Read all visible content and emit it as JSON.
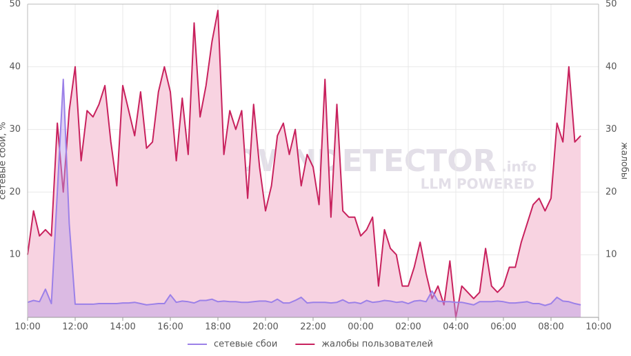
{
  "chart_data": {
    "type": "area",
    "y_label": "сетевые сбои, %",
    "y2_label": "жалобы",
    "watermark": [
      "DOWNDETECTOR",
      ".info",
      "LLM POWERED"
    ],
    "x": [
      0,
      0.25,
      0.5,
      0.75,
      1,
      1.25,
      1.5,
      1.75,
      2,
      2.25,
      2.5,
      2.75,
      3,
      3.25,
      3.5,
      3.75,
      4,
      4.25,
      4.5,
      4.75,
      5,
      5.25,
      5.5,
      5.75,
      6,
      6.25,
      6.5,
      6.75,
      7,
      7.25,
      7.5,
      7.75,
      8,
      8.25,
      8.5,
      8.75,
      9,
      9.25,
      9.5,
      9.75,
      10,
      10.25,
      10.5,
      10.75,
      11,
      11.25,
      11.5,
      11.75,
      12,
      12.25,
      12.5,
      12.75,
      13,
      13.25,
      13.5,
      13.75,
      14,
      14.25,
      14.5,
      14.75,
      15,
      15.25,
      15.5,
      15.75,
      16,
      16.25,
      16.5,
      16.75,
      17,
      17.25,
      17.5,
      17.75,
      18,
      18.25,
      18.5,
      18.75,
      19,
      19.25,
      19.5,
      19.75,
      20,
      20.25,
      20.5,
      20.75,
      21,
      21.25,
      21.5,
      21.75,
      22,
      22.25,
      22.5,
      22.75,
      23,
      23.25
    ],
    "series": [
      {
        "name": "жалобы пользователей",
        "color": "#c8215d",
        "fill": "#f8d3e1",
        "axis": "y2",
        "values": [
          10,
          17,
          13,
          14,
          13,
          31,
          20,
          33,
          40,
          25,
          33,
          32,
          34,
          37,
          28,
          21,
          37,
          33,
          29,
          36,
          27,
          28,
          36,
          40,
          36,
          25,
          35,
          26,
          47,
          32,
          37,
          44,
          49,
          26,
          33,
          30,
          33,
          19,
          34,
          24,
          17,
          21,
          29,
          31,
          26,
          30,
          21,
          26,
          24,
          18,
          38,
          16,
          34,
          17,
          16,
          16,
          13,
          14,
          16,
          5,
          14,
          11,
          10,
          5,
          5,
          8,
          12,
          7,
          3,
          5,
          2,
          9,
          0,
          5,
          4,
          3,
          4,
          11,
          5,
          4,
          5,
          8,
          8,
          12,
          15,
          18,
          19,
          17,
          19,
          31,
          28,
          40,
          28,
          29
        ]
      },
      {
        "name": "сетевые сбои",
        "color": "#9b80e8",
        "fill": "rgba(185,155,230,0.45)",
        "values": [
          2.4,
          2.7,
          2.5,
          4.5,
          2.2,
          20,
          38,
          15,
          2.1,
          2.1,
          2.1,
          2.1,
          2.2,
          2.2,
          2.2,
          2.2,
          2.3,
          2.3,
          2.4,
          2.2,
          2.0,
          2.1,
          2.2,
          2.2,
          3.6,
          2.4,
          2.6,
          2.5,
          2.3,
          2.7,
          2.7,
          2.9,
          2.5,
          2.6,
          2.5,
          2.5,
          2.4,
          2.4,
          2.5,
          2.6,
          2.6,
          2.4,
          2.9,
          2.3,
          2.3,
          2.7,
          3.2,
          2.3,
          2.4,
          2.4,
          2.4,
          2.3,
          2.4,
          2.8,
          2.3,
          2.4,
          2.2,
          2.7,
          2.4,
          2.5,
          2.7,
          2.6,
          2.4,
          2.5,
          2.2,
          2.6,
          2.7,
          2.5,
          4.2,
          2.6,
          2.5,
          2.5,
          2.4,
          2.4,
          2.2,
          2.0,
          2.5,
          2.5,
          2.5,
          2.6,
          2.5,
          2.3,
          2.3,
          2.4,
          2.5,
          2.2,
          2.2,
          1.9,
          2.2,
          3.2,
          2.6,
          2.5,
          2.2,
          2.0
        ]
      }
    ],
    "legend_order": [
      1,
      0
    ],
    "xlim": [
      0,
      24
    ],
    "xticks": [
      {
        "value": 0,
        "label": "10:00"
      },
      {
        "value": 2,
        "label": "12:00"
      },
      {
        "value": 4,
        "label": "14:00"
      },
      {
        "value": 6,
        "label": "16:00"
      },
      {
        "value": 8,
        "label": "18:00"
      },
      {
        "value": 10,
        "label": "20:00"
      },
      {
        "value": 12,
        "label": "22:00"
      },
      {
        "value": 14,
        "label": "00:00"
      },
      {
        "value": 16,
        "label": "02:00"
      },
      {
        "value": 18,
        "label": "04:00"
      },
      {
        "value": 20,
        "label": "06:00"
      },
      {
        "value": 22,
        "label": "08:00"
      },
      {
        "value": 24,
        "label": "10:00"
      }
    ],
    "ylim": [
      0,
      50
    ],
    "yticks": [
      10,
      20,
      30,
      40,
      50
    ],
    "y2lim": [
      0,
      50
    ],
    "y2ticks": [
      10,
      20,
      30,
      40,
      50
    ],
    "grid": true,
    "legend": "bottom"
  }
}
